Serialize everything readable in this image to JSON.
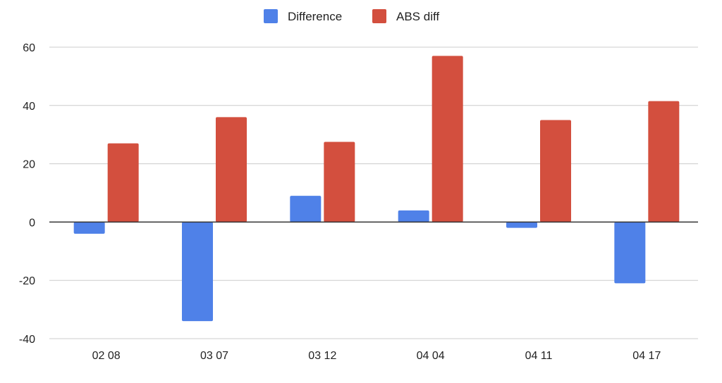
{
  "chart_data": {
    "type": "bar",
    "categories": [
      "02 08",
      "03 07",
      "03 12",
      "04 04",
      "04 11",
      "04 17"
    ],
    "series": [
      {
        "name": "Difference",
        "color": "#4f81e8",
        "values": [
          -4,
          -34,
          9,
          4,
          -2,
          -21
        ]
      },
      {
        "name": "ABS diff",
        "color": "#d34f3e",
        "values": [
          27,
          36,
          27.5,
          57,
          35,
          41.5
        ]
      }
    ],
    "ylim": [
      -40,
      60
    ],
    "yticks": [
      -40,
      -20,
      0,
      20,
      40,
      60
    ],
    "grid": true,
    "legend": "top-center"
  }
}
